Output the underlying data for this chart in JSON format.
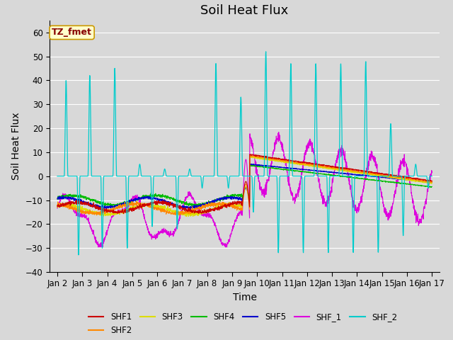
{
  "title": "Soil Heat Flux",
  "xlabel": "Time",
  "ylabel": "Soil Heat Flux",
  "ylim": [
    -40,
    65
  ],
  "background_color": "#d8d8d8",
  "plot_bg_color": "#d8d8d8",
  "legend_box_color": "#ffffcc",
  "legend_box_edge": "#cc9900",
  "annotation_text": "TZ_fmet",
  "annotation_color": "#880000",
  "series_colors": {
    "SHF1": "#cc0000",
    "SHF2": "#ff8800",
    "SHF3": "#dddd00",
    "SHF4": "#00bb00",
    "SHF5": "#0000cc",
    "SHF_1": "#dd00dd",
    "SHF_2": "#00cccc"
  },
  "title_fontsize": 13,
  "axis_label_fontsize": 10,
  "tick_fontsize": 8.5
}
